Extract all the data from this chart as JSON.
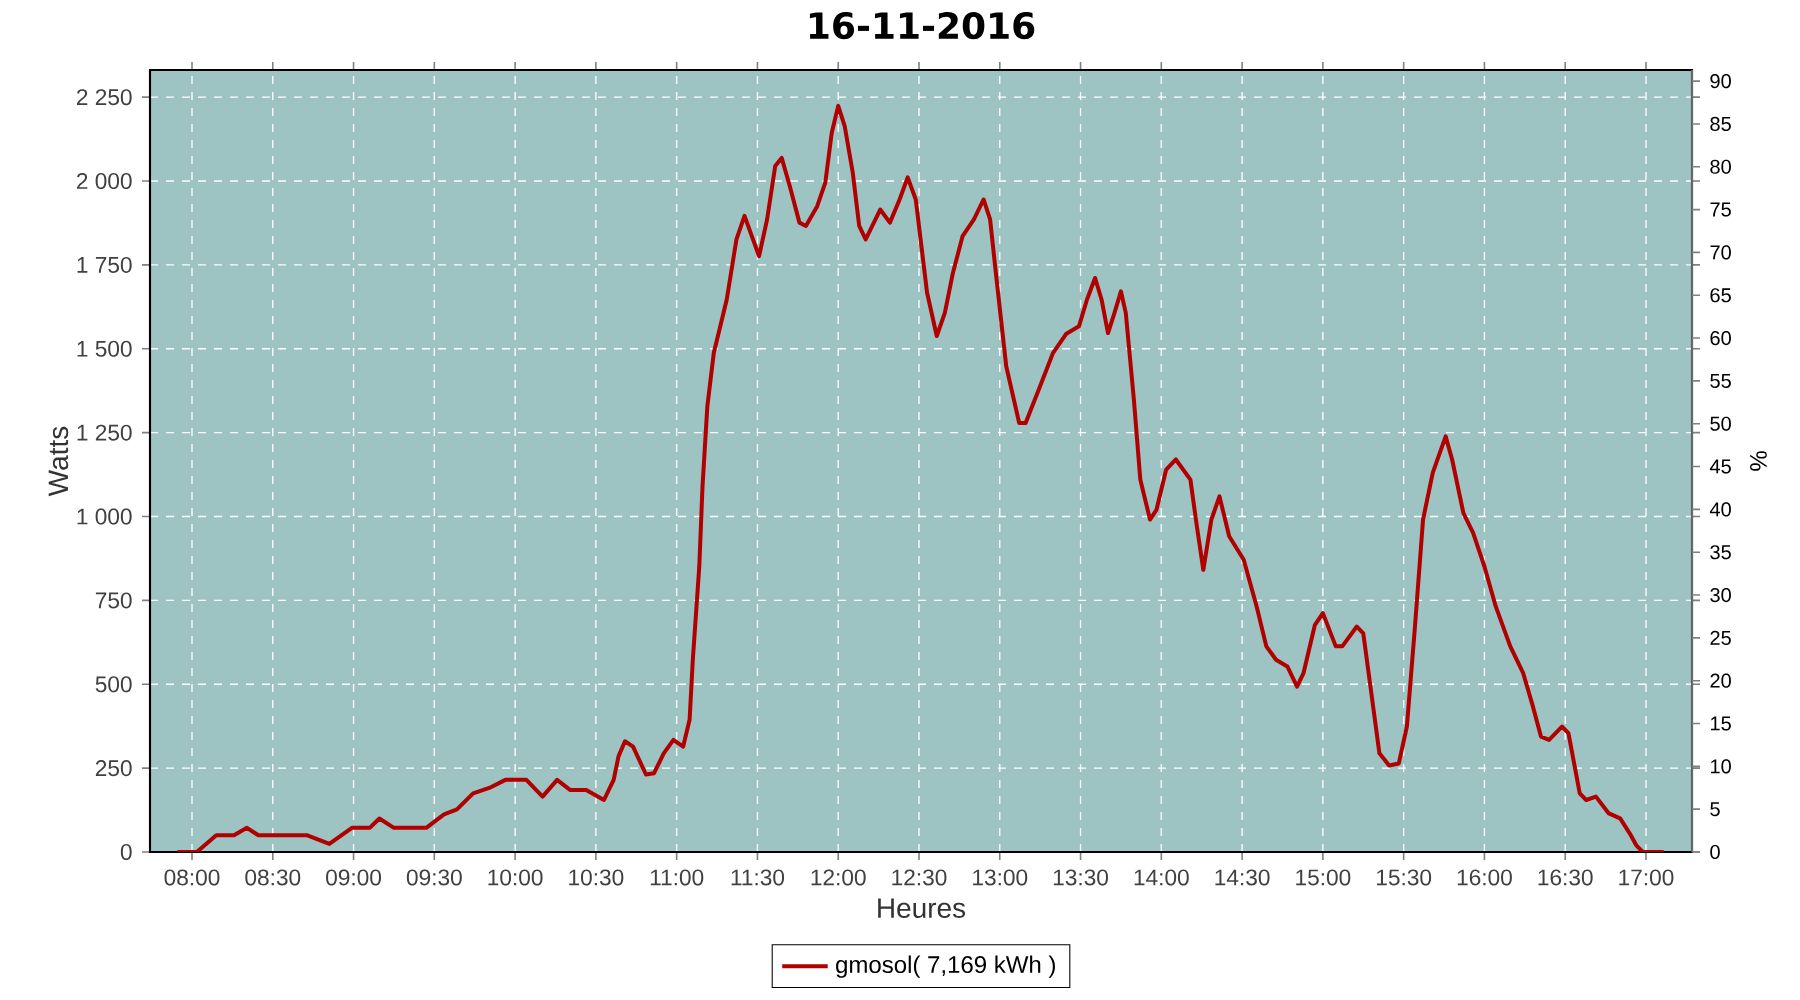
{
  "chart_data": {
    "type": "line",
    "title": "16-11-2016",
    "xlabel": "Heures",
    "ylabel": "Watts",
    "y2label": "%",
    "x": [
      7.91,
      8.03,
      8.15,
      8.26,
      8.34,
      8.41,
      8.71,
      8.85,
      8.99,
      9.1,
      9.16,
      9.25,
      9.45,
      9.56,
      9.64,
      9.74,
      9.84,
      9.94,
      10.07,
      10.17,
      10.26,
      10.34,
      10.44,
      10.55,
      10.61,
      10.64,
      10.68,
      10.73,
      10.81,
      10.86,
      10.92,
      10.98,
      11.04,
      11.08,
      11.1,
      11.14,
      11.16,
      11.19,
      11.23,
      11.27,
      11.31,
      11.35,
      11.37,
      11.42,
      11.51,
      11.56,
      11.61,
      11.65,
      11.7,
      11.76,
      11.8,
      11.87,
      11.92,
      11.96,
      12.0,
      12.04,
      12.09,
      12.13,
      12.17,
      12.26,
      12.32,
      12.38,
      12.43,
      12.48,
      12.55,
      12.61,
      12.66,
      12.71,
      12.77,
      12.84,
      12.9,
      12.94,
      12.98,
      13.04,
      13.12,
      13.16,
      13.25,
      13.33,
      13.41,
      13.49,
      13.54,
      13.59,
      13.63,
      13.67,
      13.71,
      13.75,
      13.78,
      13.83,
      13.87,
      13.93,
      13.97,
      14.03,
      14.09,
      14.18,
      14.22,
      14.26,
      14.31,
      14.36,
      14.42,
      14.51,
      14.59,
      14.65,
      14.71,
      14.78,
      14.84,
      14.88,
      14.95,
      15.0,
      15.08,
      15.12,
      15.21,
      15.25,
      15.3,
      15.35,
      15.41,
      15.47,
      15.52,
      15.57,
      15.62,
      15.68,
      15.76,
      15.8,
      15.87,
      15.93,
      16.0,
      16.07,
      16.16,
      16.24,
      16.3,
      16.35,
      16.4,
      16.48,
      16.52,
      16.59,
      16.63,
      16.69,
      16.77,
      16.84,
      16.9,
      16.94,
      16.98,
      17.11
    ],
    "series": [
      {
        "name": "gmosol( 7,169 kWh )",
        "color": "#b00000",
        "values": [
          0,
          0,
          50,
          50,
          72,
          50,
          50,
          24,
          72,
          72,
          100,
          72,
          72,
          112,
          127,
          175,
          191,
          215,
          215,
          165,
          215,
          185,
          185,
          155,
          215,
          285,
          330,
          314,
          231,
          235,
          294,
          334,
          314,
          394,
          573,
          851,
          1090,
          1329,
          1488,
          1567,
          1647,
          1766,
          1826,
          1896,
          1776,
          1886,
          2045,
          2069,
          1985,
          1876,
          1866,
          1925,
          1995,
          2144,
          2224,
          2164,
          2025,
          1866,
          1826,
          1915,
          1876,
          1945,
          2011,
          1945,
          1667,
          1538,
          1607,
          1726,
          1836,
          1886,
          1945,
          1886,
          1707,
          1448,
          1279,
          1279,
          1389,
          1488,
          1544,
          1567,
          1647,
          1711,
          1647,
          1547,
          1607,
          1671,
          1607,
          1349,
          1110,
          991,
          1020,
          1140,
          1170,
          1110,
          971,
          841,
          991,
          1060,
          941,
          871,
          732,
          613,
          573,
          553,
          493,
          533,
          676,
          712,
          613,
          613,
          672,
          652,
          473,
          294,
          258,
          264,
          374,
          672,
          991,
          1130,
          1239,
          1170,
          1010,
          951,
          851,
          732,
          613,
          533,
          434,
          344,
          334,
          374,
          354,
          175,
          155,
          165,
          115,
          100,
          55,
          20,
          0,
          0
        ]
      }
    ],
    "xlim": [
      7.74,
      17.285
    ],
    "xticks": [
      {
        "value": 8,
        "label": "08:00"
      },
      {
        "value": 8.5,
        "label": "08:30"
      },
      {
        "value": 9,
        "label": "09:00"
      },
      {
        "value": 9.5,
        "label": "09:30"
      },
      {
        "value": 10,
        "label": "10:00"
      },
      {
        "value": 10.5,
        "label": "10:30"
      },
      {
        "value": 11,
        "label": "11:00"
      },
      {
        "value": 11.5,
        "label": "11:30"
      },
      {
        "value": 12,
        "label": "12:00"
      },
      {
        "value": 12.5,
        "label": "12:30"
      },
      {
        "value": 13,
        "label": "13:00"
      },
      {
        "value": 13.5,
        "label": "13:30"
      },
      {
        "value": 14,
        "label": "14:00"
      },
      {
        "value": 14.5,
        "label": "14:30"
      },
      {
        "value": 15,
        "label": "15:00"
      },
      {
        "value": 15.5,
        "label": "15:30"
      },
      {
        "value": 16,
        "label": "16:00"
      },
      {
        "value": 16.5,
        "label": "16:30"
      },
      {
        "value": 17,
        "label": "17:00"
      }
    ],
    "ylim": [
      0,
      2331
    ],
    "yticks": [
      0,
      250,
      500,
      750,
      {
        "value": 1000,
        "label": "1 000"
      },
      {
        "value": 1250,
        "label": "1 250"
      },
      {
        "value": 1500,
        "label": "1 500"
      },
      {
        "value": 1750,
        "label": "1 750"
      },
      {
        "value": 2000,
        "label": "2 000"
      },
      {
        "value": 2250,
        "label": "2 250"
      }
    ],
    "y2lim": [
      0,
      91.3
    ],
    "y2ticks": [
      0,
      5,
      10,
      15,
      20,
      25,
      30,
      35,
      40,
      45,
      50,
      55,
      60,
      65,
      70,
      75,
      80,
      85,
      90
    ],
    "grid": true,
    "legend": "bottom",
    "marker": "none",
    "line_style": "solid"
  }
}
